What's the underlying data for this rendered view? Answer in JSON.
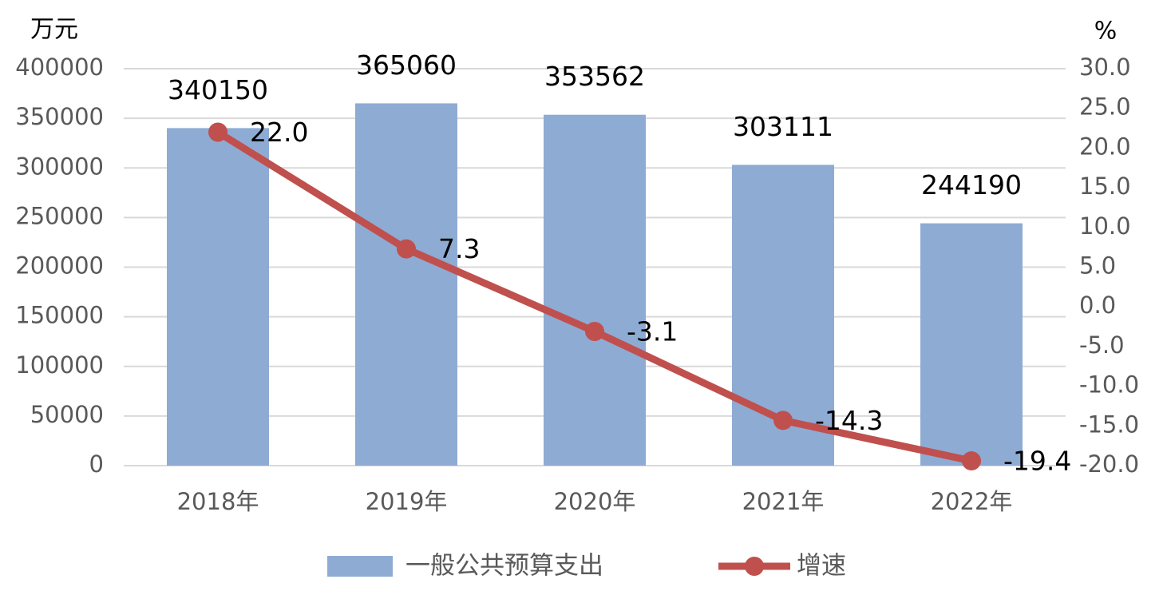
{
  "chart_data": {
    "type": "combo",
    "y_unit": "万元",
    "y2_unit": "%",
    "categories": [
      "2018年",
      "2019年",
      "2020年",
      "2021年",
      "2022年"
    ],
    "series": [
      {
        "name": "一般公共预算支出",
        "type": "bar",
        "color": "#8eabd4",
        "values": [
          340150,
          365060,
          353562,
          303111,
          244190
        ]
      },
      {
        "name": "增速",
        "type": "line",
        "axis": "y2",
        "color": "#c0504d",
        "values": [
          22.0,
          7.3,
          -3.1,
          -14.3,
          -19.4
        ],
        "value_labels": [
          "22.0",
          "7.3",
          "-3.1",
          "-14.3",
          "-19.4"
        ]
      }
    ],
    "ylim": [
      0,
      400000
    ],
    "yticks": [
      0,
      50000,
      100000,
      150000,
      200000,
      250000,
      300000,
      350000,
      400000
    ],
    "y2lim": [
      -20,
      30
    ],
    "y2ticks": [
      {
        "value": -20,
        "label": "-20.0"
      },
      {
        "value": -15,
        "label": "-15.0"
      },
      {
        "value": -10,
        "label": "-10.0"
      },
      {
        "value": -5,
        "label": "-5.0"
      },
      {
        "value": 0,
        "label": "0.0"
      },
      {
        "value": 5,
        "label": "5.0"
      },
      {
        "value": 10,
        "label": "10.0"
      },
      {
        "value": 15,
        "label": "15.0"
      },
      {
        "value": 20,
        "label": "20.0"
      },
      {
        "value": 25,
        "label": "25.0"
      },
      {
        "value": 30,
        "label": "30.0"
      }
    ],
    "grid": true,
    "legend": "bottom"
  }
}
